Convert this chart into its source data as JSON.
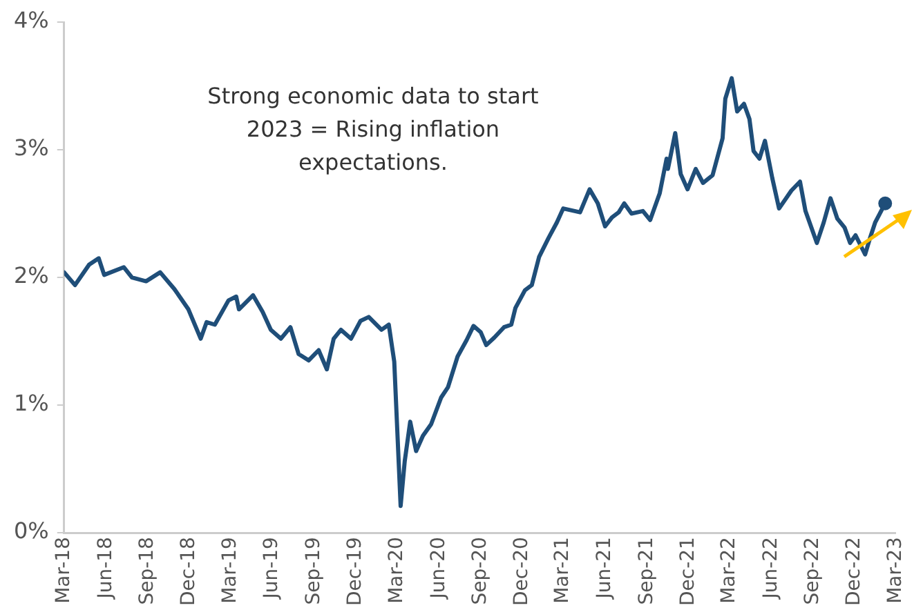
{
  "chart_data": {
    "type": "line",
    "annotations": [
      "Strong economic data to start 2023 = Rising inflation expectations."
    ],
    "xlim": [
      "2018-03-01",
      "2023-03-01"
    ],
    "xticks": [
      {
        "value": "2018-03-01",
        "label": "Mar-18"
      },
      {
        "value": "2018-06-01",
        "label": "Jun-18"
      },
      {
        "value": "2018-09-01",
        "label": "Sep-18"
      },
      {
        "value": "2018-12-01",
        "label": "Dec-18"
      },
      {
        "value": "2019-03-01",
        "label": "Mar-19"
      },
      {
        "value": "2019-06-01",
        "label": "Jun-19"
      },
      {
        "value": "2019-09-01",
        "label": "Sep-19"
      },
      {
        "value": "2019-12-01",
        "label": "Dec-19"
      },
      {
        "value": "2020-03-01",
        "label": "Mar-20"
      },
      {
        "value": "2020-06-01",
        "label": "Jun-20"
      },
      {
        "value": "2020-09-01",
        "label": "Sep-20"
      },
      {
        "value": "2020-12-01",
        "label": "Dec-20"
      },
      {
        "value": "2021-03-01",
        "label": "Mar-21"
      },
      {
        "value": "2021-06-01",
        "label": "Jun-21"
      },
      {
        "value": "2021-09-01",
        "label": "Sep-21"
      },
      {
        "value": "2021-12-01",
        "label": "Dec-21"
      },
      {
        "value": "2022-03-01",
        "label": "Mar-22"
      },
      {
        "value": "2022-06-01",
        "label": "Jun-22"
      },
      {
        "value": "2022-09-01",
        "label": "Sep-22"
      },
      {
        "value": "2022-12-01",
        "label": "Dec-22"
      },
      {
        "value": "2023-03-01",
        "label": "Mar-23"
      }
    ],
    "ylim": [
      0,
      4
    ],
    "yticks": [
      {
        "value": 0,
        "label": "0%"
      },
      {
        "value": 1,
        "label": "1%"
      },
      {
        "value": 2,
        "label": "2%"
      },
      {
        "value": 3,
        "label": "3%"
      },
      {
        "value": 4,
        "label": "4%"
      }
    ],
    "grid": false,
    "legend": false,
    "marker": "none",
    "line_style": "solid",
    "series": [
      {
        "color": "#1f4e79",
        "x": [
          "2018-03-01",
          "2018-03-25",
          "2018-04-25",
          "2018-05-16",
          "2018-05-28",
          "2018-07-10",
          "2018-07-28",
          "2018-08-28",
          "2018-09-28",
          "2018-10-29",
          "2018-11-29",
          "2018-12-26",
          "2019-01-08",
          "2019-01-26",
          "2019-02-25",
          "2019-03-14",
          "2019-03-20",
          "2019-04-20",
          "2019-05-11",
          "2019-05-29",
          "2019-06-20",
          "2019-07-11",
          "2019-07-29",
          "2019-08-20",
          "2019-09-11",
          "2019-09-29",
          "2019-10-14",
          "2019-10-30",
          "2019-11-21",
          "2019-12-12",
          "2019-12-30",
          "2020-01-27",
          "2020-02-12",
          "2020-02-24",
          "2020-03-09",
          "2020-03-18",
          "2020-03-30",
          "2020-04-12",
          "2020-04-27",
          "2020-05-15",
          "2020-06-06",
          "2020-06-21",
          "2020-07-12",
          "2020-08-01",
          "2020-08-16",
          "2020-09-01",
          "2020-09-13",
          "2020-10-01",
          "2020-10-22",
          "2020-11-07",
          "2020-11-16",
          "2020-12-07",
          "2020-12-22",
          "2021-01-07",
          "2021-01-28",
          "2021-02-15",
          "2021-03-01",
          "2021-04-07",
          "2021-04-28",
          "2021-05-16",
          "2021-06-01",
          "2021-06-16",
          "2021-07-01",
          "2021-07-13",
          "2021-07-29",
          "2021-08-23",
          "2021-09-08",
          "2021-09-29",
          "2021-10-14",
          "2021-10-17",
          "2021-11-02",
          "2021-11-14",
          "2021-11-29",
          "2021-12-17",
          "2022-01-02",
          "2022-01-23",
          "2022-02-14",
          "2022-02-20",
          "2022-03-06",
          "2022-03-18",
          "2022-04-02",
          "2022-04-14",
          "2022-04-23",
          "2022-05-06",
          "2022-05-18",
          "2022-06-03",
          "2022-06-18",
          "2022-07-15",
          "2022-08-03",
          "2022-08-15",
          "2022-09-09",
          "2022-09-24",
          "2022-10-09",
          "2022-10-24",
          "2022-11-09",
          "2022-11-21",
          "2022-12-03",
          "2022-12-24",
          "2023-01-03",
          "2023-01-15",
          "2023-02-06"
        ],
        "values": [
          2.04,
          1.94,
          2.1,
          2.15,
          2.02,
          2.08,
          2.0,
          1.97,
          2.04,
          1.91,
          1.75,
          1.52,
          1.65,
          1.63,
          1.82,
          1.85,
          1.75,
          1.86,
          1.73,
          1.59,
          1.52,
          1.61,
          1.4,
          1.35,
          1.43,
          1.28,
          1.52,
          1.59,
          1.52,
          1.66,
          1.69,
          1.59,
          1.63,
          1.34,
          0.21,
          0.56,
          0.87,
          0.64,
          0.76,
          0.85,
          1.06,
          1.14,
          1.38,
          1.51,
          1.62,
          1.57,
          1.47,
          1.53,
          1.61,
          1.63,
          1.76,
          1.9,
          1.94,
          2.16,
          2.31,
          2.43,
          2.54,
          2.51,
          2.69,
          2.58,
          2.4,
          2.47,
          2.51,
          2.58,
          2.5,
          2.52,
          2.45,
          2.66,
          2.93,
          2.85,
          3.13,
          2.81,
          2.69,
          2.85,
          2.74,
          2.8,
          3.09,
          3.4,
          3.56,
          3.3,
          3.36,
          3.24,
          2.99,
          2.93,
          3.07,
          2.78,
          2.54,
          2.68,
          2.75,
          2.52,
          2.27,
          2.43,
          2.62,
          2.46,
          2.39,
          2.27,
          2.33,
          2.18,
          2.3,
          2.43,
          2.58
        ]
      }
    ]
  }
}
